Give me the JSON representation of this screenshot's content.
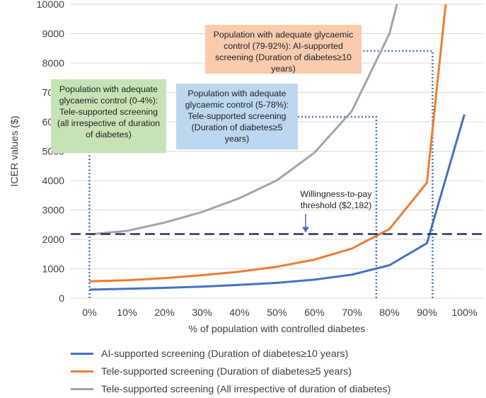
{
  "chart_data": {
    "type": "line",
    "categories": [
      "0%",
      "10%",
      "20%",
      "30%",
      "40%",
      "50%",
      "60%",
      "70%",
      "80%",
      "90%",
      "100%"
    ],
    "xlabel": "% of population with controlled diabetes",
    "ylabel": "ICER values ($)",
    "ylim": [
      0,
      10000
    ],
    "yticks": [
      0,
      1000,
      2000,
      3000,
      4000,
      5000,
      6000,
      7000,
      8000,
      9000,
      10000
    ],
    "gridlines": true,
    "series": [
      {
        "name": "AI-supported screening (Duration of diabetes≥10 years)",
        "color": "#4472c4",
        "x": [
          0,
          10,
          20,
          30,
          40,
          50,
          60,
          70,
          80,
          90,
          100
        ],
        "values": [
          290,
          320,
          350,
          390,
          450,
          520,
          630,
          800,
          1120,
          1870,
          6250
        ]
      },
      {
        "name": "Tele-supported screening (Duration of diabetes≥5 years)",
        "color": "#ed7d31",
        "x": [
          0,
          10,
          20,
          30,
          40,
          50,
          60,
          70,
          80,
          90,
          95
        ],
        "values": [
          570,
          610,
          680,
          780,
          900,
          1070,
          1310,
          1690,
          2350,
          3930,
          10000
        ]
      },
      {
        "name": "Tele-supported screening (All irrespective of duration of diabetes)",
        "color": "#a5a5a5",
        "x": [
          0,
          10,
          20,
          30,
          40,
          50,
          60,
          70,
          80,
          82
        ],
        "values": [
          2170,
          2290,
          2570,
          2930,
          3400,
          4010,
          4950,
          6370,
          9000,
          10000
        ]
      }
    ],
    "threshold": {
      "value": 2182,
      "color": "#1f3864",
      "label": "Willingness-to-pay threshold ($2,182)"
    },
    "annotations": [
      {
        "id": "green",
        "text": "Population with adequate glycaemic control (0-4%): Tele-supported screening (all irrespective of duration of diabetes)",
        "range": [
          0,
          4
        ],
        "color": "#c7e3b6"
      },
      {
        "id": "blue",
        "text": "Population with adequate glycaemic control (5-78%): Tele-supported screening (Duration of diabetes≥5 years)",
        "range": [
          5,
          78
        ],
        "color": "#bdd7ee"
      },
      {
        "id": "orange",
        "text": "Population with adequate glycaemic control (79-92%): AI-supported screening (Duration of diabetes≥10 years)",
        "range": [
          79,
          92
        ],
        "color": "#f8cbad"
      }
    ]
  }
}
